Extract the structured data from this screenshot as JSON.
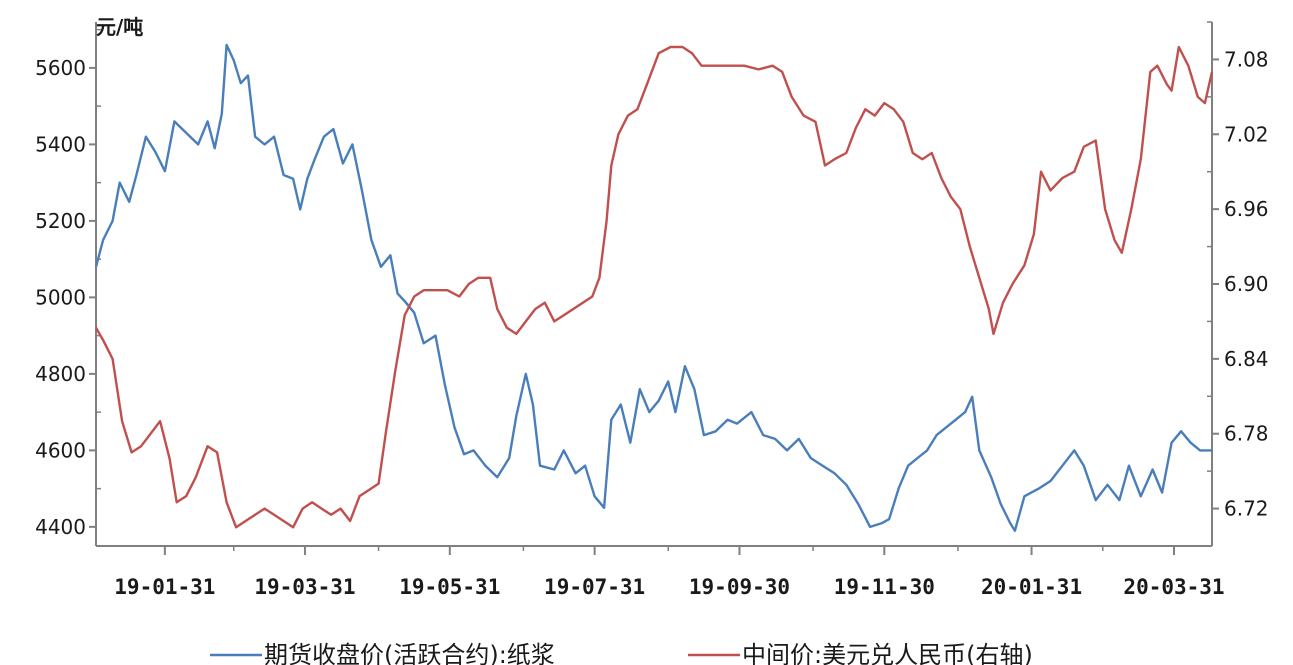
{
  "chart_data": {
    "type": "line",
    "y_unit_label": "元/吨",
    "x_tick_labels": [
      "19-01-31",
      "19-03-31",
      "19-05-31",
      "19-07-31",
      "19-09-30",
      "19-11-30",
      "20-01-31",
      "20-03-31"
    ],
    "x_tick_dates": [
      "2019-01-31",
      "2019-03-31",
      "2019-05-31",
      "2019-07-31",
      "2019-09-30",
      "2019-11-30",
      "2020-01-31",
      "2020-03-31"
    ],
    "x_range": [
      "2019-01-02",
      "2020-04-16"
    ],
    "y_left": {
      "ticks": [
        4400,
        4600,
        4800,
        5000,
        5200,
        5400,
        5600
      ],
      "range": [
        4350,
        5720
      ]
    },
    "y_right": {
      "ticks": [
        "6.72",
        "6.78",
        "6.84",
        "6.90",
        "6.96",
        "7.02",
        "7.08"
      ],
      "range": [
        6.69,
        7.11
      ]
    },
    "grid": false,
    "legend_position": "bottom",
    "series": [
      {
        "name": "期货收盘价(活跃合约):纸浆",
        "axis": "left",
        "color": "#4a7ebb",
        "points": [
          [
            "2019-01-02",
            5080
          ],
          [
            "2019-01-05",
            5150
          ],
          [
            "2019-01-09",
            5200
          ],
          [
            "2019-01-12",
            5300
          ],
          [
            "2019-01-16",
            5250
          ],
          [
            "2019-01-19",
            5320
          ],
          [
            "2019-01-23",
            5420
          ],
          [
            "2019-01-27",
            5380
          ],
          [
            "2019-01-31",
            5330
          ],
          [
            "2019-02-04",
            5460
          ],
          [
            "2019-02-09",
            5430
          ],
          [
            "2019-02-14",
            5400
          ],
          [
            "2019-02-18",
            5460
          ],
          [
            "2019-02-21",
            5390
          ],
          [
            "2019-02-24",
            5480
          ],
          [
            "2019-02-26",
            5660
          ],
          [
            "2019-03-01",
            5620
          ],
          [
            "2019-03-04",
            5560
          ],
          [
            "2019-03-07",
            5580
          ],
          [
            "2019-03-10",
            5420
          ],
          [
            "2019-03-14",
            5400
          ],
          [
            "2019-03-18",
            5420
          ],
          [
            "2019-03-22",
            5320
          ],
          [
            "2019-03-26",
            5310
          ],
          [
            "2019-03-29",
            5230
          ],
          [
            "2019-04-01",
            5310
          ],
          [
            "2019-04-04",
            5360
          ],
          [
            "2019-04-08",
            5420
          ],
          [
            "2019-04-12",
            5440
          ],
          [
            "2019-04-16",
            5350
          ],
          [
            "2019-04-20",
            5400
          ],
          [
            "2019-04-24",
            5280
          ],
          [
            "2019-04-28",
            5150
          ],
          [
            "2019-05-02",
            5080
          ],
          [
            "2019-05-06",
            5110
          ],
          [
            "2019-05-09",
            5010
          ],
          [
            "2019-05-12",
            4990
          ],
          [
            "2019-05-16",
            4960
          ],
          [
            "2019-05-20",
            4880
          ],
          [
            "2019-05-25",
            4900
          ],
          [
            "2019-05-29",
            4770
          ],
          [
            "2019-06-02",
            4660
          ],
          [
            "2019-06-06",
            4590
          ],
          [
            "2019-06-10",
            4600
          ],
          [
            "2019-06-15",
            4560
          ],
          [
            "2019-06-20",
            4530
          ],
          [
            "2019-06-25",
            4580
          ],
          [
            "2019-06-28",
            4690
          ],
          [
            "2019-07-02",
            4800
          ],
          [
            "2019-07-05",
            4720
          ],
          [
            "2019-07-08",
            4560
          ],
          [
            "2019-07-14",
            4550
          ],
          [
            "2019-07-18",
            4600
          ],
          [
            "2019-07-23",
            4540
          ],
          [
            "2019-07-27",
            4560
          ],
          [
            "2019-07-31",
            4480
          ],
          [
            "2019-08-04",
            4450
          ],
          [
            "2019-08-07",
            4680
          ],
          [
            "2019-08-11",
            4720
          ],
          [
            "2019-08-15",
            4620
          ],
          [
            "2019-08-19",
            4760
          ],
          [
            "2019-08-23",
            4700
          ],
          [
            "2019-08-27",
            4730
          ],
          [
            "2019-08-31",
            4780
          ],
          [
            "2019-09-03",
            4700
          ],
          [
            "2019-09-07",
            4820
          ],
          [
            "2019-09-11",
            4760
          ],
          [
            "2019-09-15",
            4640
          ],
          [
            "2019-09-20",
            4650
          ],
          [
            "2019-09-25",
            4680
          ],
          [
            "2019-09-29",
            4670
          ],
          [
            "2019-10-05",
            4700
          ],
          [
            "2019-10-10",
            4640
          ],
          [
            "2019-10-15",
            4630
          ],
          [
            "2019-10-20",
            4600
          ],
          [
            "2019-10-25",
            4630
          ],
          [
            "2019-10-30",
            4580
          ],
          [
            "2019-11-04",
            4560
          ],
          [
            "2019-11-09",
            4540
          ],
          [
            "2019-11-14",
            4510
          ],
          [
            "2019-11-19",
            4460
          ],
          [
            "2019-11-24",
            4400
          ],
          [
            "2019-11-29",
            4410
          ],
          [
            "2019-12-02",
            4420
          ],
          [
            "2019-12-06",
            4500
          ],
          [
            "2019-12-10",
            4560
          ],
          [
            "2019-12-14",
            4580
          ],
          [
            "2019-12-18",
            4600
          ],
          [
            "2019-12-22",
            4640
          ],
          [
            "2019-12-26",
            4660
          ],
          [
            "2019-12-30",
            4680
          ],
          [
            "2020-01-03",
            4700
          ],
          [
            "2020-01-06",
            4740
          ],
          [
            "2020-01-09",
            4600
          ],
          [
            "2020-01-14",
            4530
          ],
          [
            "2020-01-18",
            4460
          ],
          [
            "2020-01-22",
            4410
          ],
          [
            "2020-01-24",
            4390
          ],
          [
            "2020-01-28",
            4480
          ],
          [
            "2020-02-03",
            4500
          ],
          [
            "2020-02-08",
            4520
          ],
          [
            "2020-02-13",
            4560
          ],
          [
            "2020-02-18",
            4600
          ],
          [
            "2020-02-22",
            4560
          ],
          [
            "2020-02-27",
            4470
          ],
          [
            "2020-03-03",
            4510
          ],
          [
            "2020-03-08",
            4470
          ],
          [
            "2020-03-12",
            4560
          ],
          [
            "2020-03-17",
            4480
          ],
          [
            "2020-03-22",
            4550
          ],
          [
            "2020-03-26",
            4490
          ],
          [
            "2020-03-30",
            4620
          ],
          [
            "2020-04-03",
            4650
          ],
          [
            "2020-04-07",
            4620
          ],
          [
            "2020-04-11",
            4600
          ],
          [
            "2020-04-16",
            4600
          ]
        ]
      },
      {
        "name": "中间价:美元兑人民币(右轴)",
        "axis": "right",
        "color": "#c0504d",
        "points": [
          [
            "2019-01-02",
            6.865
          ],
          [
            "2019-01-05",
            6.855
          ],
          [
            "2019-01-09",
            6.84
          ],
          [
            "2019-01-13",
            6.79
          ],
          [
            "2019-01-17",
            6.765
          ],
          [
            "2019-01-21",
            6.77
          ],
          [
            "2019-01-25",
            6.78
          ],
          [
            "2019-01-29",
            6.79
          ],
          [
            "2019-02-02",
            6.76
          ],
          [
            "2019-02-05",
            6.725
          ],
          [
            "2019-02-09",
            6.73
          ],
          [
            "2019-02-13",
            6.745
          ],
          [
            "2019-02-18",
            6.77
          ],
          [
            "2019-02-22",
            6.765
          ],
          [
            "2019-02-26",
            6.725
          ],
          [
            "2019-03-02",
            6.705
          ],
          [
            "2019-03-06",
            6.71
          ],
          [
            "2019-03-10",
            6.715
          ],
          [
            "2019-03-14",
            6.72
          ],
          [
            "2019-03-18",
            6.715
          ],
          [
            "2019-03-22",
            6.71
          ],
          [
            "2019-03-26",
            6.705
          ],
          [
            "2019-03-30",
            6.72
          ],
          [
            "2019-04-03",
            6.725
          ],
          [
            "2019-04-07",
            6.72
          ],
          [
            "2019-04-11",
            6.715
          ],
          [
            "2019-04-15",
            6.72
          ],
          [
            "2019-04-19",
            6.71
          ],
          [
            "2019-04-23",
            6.73
          ],
          [
            "2019-04-27",
            6.735
          ],
          [
            "2019-05-01",
            6.74
          ],
          [
            "2019-05-04",
            6.78
          ],
          [
            "2019-05-08",
            6.83
          ],
          [
            "2019-05-12",
            6.875
          ],
          [
            "2019-05-16",
            6.89
          ],
          [
            "2019-05-20",
            6.895
          ],
          [
            "2019-05-25",
            6.895
          ],
          [
            "2019-05-30",
            6.895
          ],
          [
            "2019-06-04",
            6.89
          ],
          [
            "2019-06-08",
            6.9
          ],
          [
            "2019-06-12",
            6.905
          ],
          [
            "2019-06-17",
            6.905
          ],
          [
            "2019-06-20",
            6.88
          ],
          [
            "2019-06-24",
            6.865
          ],
          [
            "2019-06-28",
            6.86
          ],
          [
            "2019-07-02",
            6.87
          ],
          [
            "2019-07-06",
            6.88
          ],
          [
            "2019-07-10",
            6.885
          ],
          [
            "2019-07-14",
            6.87
          ],
          [
            "2019-07-18",
            6.875
          ],
          [
            "2019-07-22",
            6.88
          ],
          [
            "2019-07-26",
            6.885
          ],
          [
            "2019-07-30",
            6.89
          ],
          [
            "2019-08-02",
            6.905
          ],
          [
            "2019-08-05",
            6.95
          ],
          [
            "2019-08-07",
            6.995
          ],
          [
            "2019-08-10",
            7.02
          ],
          [
            "2019-08-14",
            7.035
          ],
          [
            "2019-08-18",
            7.04
          ],
          [
            "2019-08-22",
            7.06
          ],
          [
            "2019-08-27",
            7.085
          ],
          [
            "2019-09-01",
            7.09
          ],
          [
            "2019-09-06",
            7.09
          ],
          [
            "2019-09-10",
            7.085
          ],
          [
            "2019-09-14",
            7.075
          ],
          [
            "2019-09-20",
            7.075
          ],
          [
            "2019-09-26",
            7.075
          ],
          [
            "2019-10-02",
            7.075
          ],
          [
            "2019-10-08",
            7.072
          ],
          [
            "2019-10-14",
            7.075
          ],
          [
            "2019-10-18",
            7.07
          ],
          [
            "2019-10-22",
            7.05
          ],
          [
            "2019-10-27",
            7.035
          ],
          [
            "2019-11-01",
            7.03
          ],
          [
            "2019-11-05",
            6.995
          ],
          [
            "2019-11-09",
            7.0
          ],
          [
            "2019-11-14",
            7.005
          ],
          [
            "2019-11-18",
            7.025
          ],
          [
            "2019-11-22",
            7.04
          ],
          [
            "2019-11-26",
            7.035
          ],
          [
            "2019-11-30",
            7.045
          ],
          [
            "2019-12-04",
            7.04
          ],
          [
            "2019-12-08",
            7.03
          ],
          [
            "2019-12-12",
            7.005
          ],
          [
            "2019-12-16",
            7.0
          ],
          [
            "2019-12-20",
            7.005
          ],
          [
            "2019-12-24",
            6.985
          ],
          [
            "2019-12-28",
            6.97
          ],
          [
            "2020-01-01",
            6.96
          ],
          [
            "2020-01-05",
            6.93
          ],
          [
            "2020-01-09",
            6.905
          ],
          [
            "2020-01-13",
            6.88
          ],
          [
            "2020-01-15",
            6.86
          ],
          [
            "2020-01-19",
            6.885
          ],
          [
            "2020-01-23",
            6.9
          ],
          [
            "2020-01-28",
            6.915
          ],
          [
            "2020-02-01",
            6.94
          ],
          [
            "2020-02-04",
            6.99
          ],
          [
            "2020-02-08",
            6.975
          ],
          [
            "2020-02-13",
            6.985
          ],
          [
            "2020-02-18",
            6.99
          ],
          [
            "2020-02-22",
            7.01
          ],
          [
            "2020-02-27",
            7.015
          ],
          [
            "2020-03-02",
            6.96
          ],
          [
            "2020-03-06",
            6.935
          ],
          [
            "2020-03-09",
            6.925
          ],
          [
            "2020-03-13",
            6.96
          ],
          [
            "2020-03-17",
            7.0
          ],
          [
            "2020-03-21",
            7.07
          ],
          [
            "2020-03-24",
            7.075
          ],
          [
            "2020-03-28",
            7.06
          ],
          [
            "2020-03-30",
            7.055
          ],
          [
            "2020-04-02",
            7.09
          ],
          [
            "2020-04-06",
            7.075
          ],
          [
            "2020-04-10",
            7.05
          ],
          [
            "2020-04-13",
            7.045
          ],
          [
            "2020-04-16",
            7.07
          ]
        ]
      }
    ]
  }
}
